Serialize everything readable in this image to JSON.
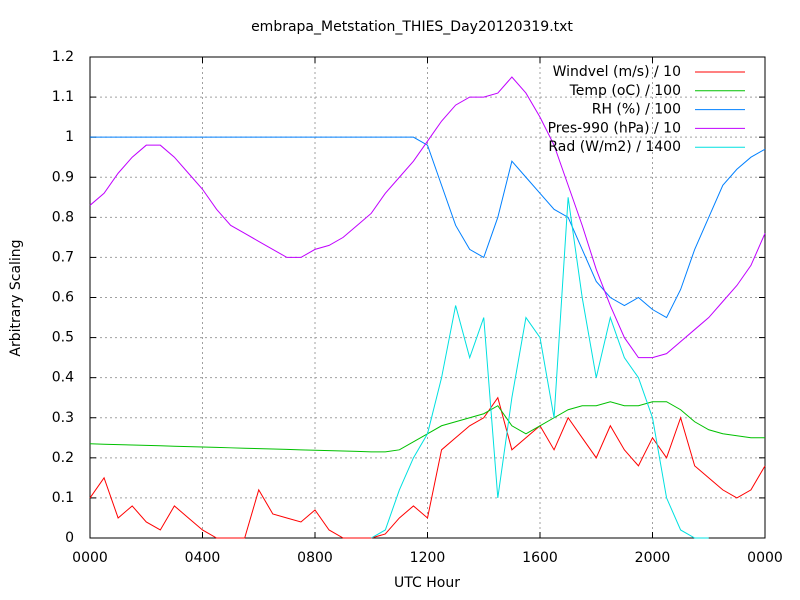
{
  "chart_data": {
    "type": "line",
    "title": "embrapa_Metstation_THIES_Day20120319.txt",
    "x_label": "UTC Hour",
    "y_label": "Arbitrary Scaling",
    "xlim": [
      0,
      24
    ],
    "ylim": [
      0,
      1.2
    ],
    "xticks": [
      {
        "value": 0,
        "label": "0000"
      },
      {
        "value": 4,
        "label": "0400"
      },
      {
        "value": 8,
        "label": "0800"
      },
      {
        "value": 12,
        "label": "1200"
      },
      {
        "value": 16,
        "label": "1600"
      },
      {
        "value": 20,
        "label": "2000"
      },
      {
        "value": 24,
        "label": "0000"
      }
    ],
    "yticks": [
      0,
      0.1,
      0.2,
      0.3,
      0.4,
      0.5,
      0.6,
      0.7,
      0.8,
      0.9,
      1,
      1.1,
      1.2
    ],
    "grid": true,
    "legend": "top-right",
    "x": [
      0,
      0.5,
      1,
      1.5,
      2,
      2.5,
      3,
      3.5,
      4,
      4.5,
      5,
      5.5,
      6,
      6.5,
      7,
      7.5,
      8,
      8.5,
      9,
      9.5,
      10,
      10.5,
      11,
      11.5,
      12,
      12.5,
      13,
      13.5,
      14,
      14.5,
      15,
      15.5,
      16,
      16.5,
      17,
      17.5,
      18,
      18.5,
      19,
      19.5,
      20,
      20.5,
      21,
      21.5,
      22,
      22.5,
      23,
      23.5,
      24
    ],
    "series": [
      {
        "name": "Windvel (m/s) / 10",
        "color": "#ff0000",
        "values": [
          0.1,
          0.15,
          0.05,
          0.08,
          0.04,
          0.02,
          0.08,
          0.05,
          0.02,
          0,
          0,
          0,
          0.12,
          0.06,
          0.05,
          0.04,
          0.07,
          0.02,
          0,
          0,
          0,
          0.01,
          0.05,
          0.08,
          0.05,
          0.22,
          0.25,
          0.28,
          0.3,
          0.35,
          0.22,
          0.25,
          0.28,
          0.22,
          0.3,
          0.25,
          0.2,
          0.28,
          0.22,
          0.18,
          0.25,
          0.2,
          0.3,
          0.18,
          0.15,
          0.12,
          0.1,
          0.12,
          0.18
        ]
      },
      {
        "name": "Temp (oC) / 100",
        "color": "#00c000",
        "values": [
          0.235,
          0.234,
          0.233,
          0.232,
          0.231,
          0.23,
          0.229,
          0.228,
          0.227,
          0.226,
          0.225,
          0.224,
          0.223,
          0.222,
          0.221,
          0.22,
          0.219,
          0.218,
          0.217,
          0.216,
          0.215,
          0.215,
          0.22,
          0.24,
          0.26,
          0.28,
          0.29,
          0.3,
          0.31,
          0.33,
          0.28,
          0.26,
          0.28,
          0.3,
          0.32,
          0.33,
          0.33,
          0.34,
          0.33,
          0.33,
          0.34,
          0.34,
          0.32,
          0.29,
          0.27,
          0.26,
          0.255,
          0.25,
          0.25
        ]
      },
      {
        "name": "RH (%) / 100",
        "color": "#0080ff",
        "values": [
          1,
          1,
          1,
          1,
          1,
          1,
          1,
          1,
          1,
          1,
          1,
          1,
          1,
          1,
          1,
          1,
          1,
          1,
          1,
          1,
          1,
          1,
          1,
          1,
          0.98,
          0.88,
          0.78,
          0.72,
          0.7,
          0.8,
          0.94,
          0.9,
          0.86,
          0.82,
          0.8,
          0.72,
          0.64,
          0.6,
          0.58,
          0.6,
          0.57,
          0.55,
          0.62,
          0.72,
          0.8,
          0.88,
          0.92,
          0.95,
          0.97
        ]
      },
      {
        "name": "Pres-990 (hPa) / 10",
        "color": "#c000ff",
        "values": [
          0.83,
          0.86,
          0.91,
          0.95,
          0.98,
          0.98,
          0.95,
          0.91,
          0.87,
          0.82,
          0.78,
          0.76,
          0.74,
          0.72,
          0.7,
          0.7,
          0.72,
          0.73,
          0.75,
          0.78,
          0.81,
          0.86,
          0.9,
          0.94,
          0.99,
          1.04,
          1.08,
          1.1,
          1.1,
          1.11,
          1.15,
          1.11,
          1.05,
          0.98,
          0.88,
          0.78,
          0.67,
          0.58,
          0.5,
          0.45,
          0.45,
          0.46,
          0.49,
          0.52,
          0.55,
          0.59,
          0.63,
          0.68,
          0.76
        ]
      },
      {
        "name": "Rad (W/m2) / 1400",
        "color": "#00e0e0",
        "values": [
          null,
          null,
          null,
          null,
          null,
          null,
          null,
          null,
          null,
          null,
          null,
          null,
          null,
          null,
          null,
          null,
          null,
          null,
          null,
          null,
          0,
          0.02,
          0.12,
          0.2,
          0.26,
          0.4,
          0.58,
          0.45,
          0.55,
          0.1,
          0.35,
          0.55,
          0.5,
          0.3,
          0.85,
          0.6,
          0.4,
          0.55,
          0.45,
          0.4,
          0.3,
          0.1,
          0.02,
          0,
          0,
          null,
          null,
          null,
          null
        ]
      }
    ]
  }
}
